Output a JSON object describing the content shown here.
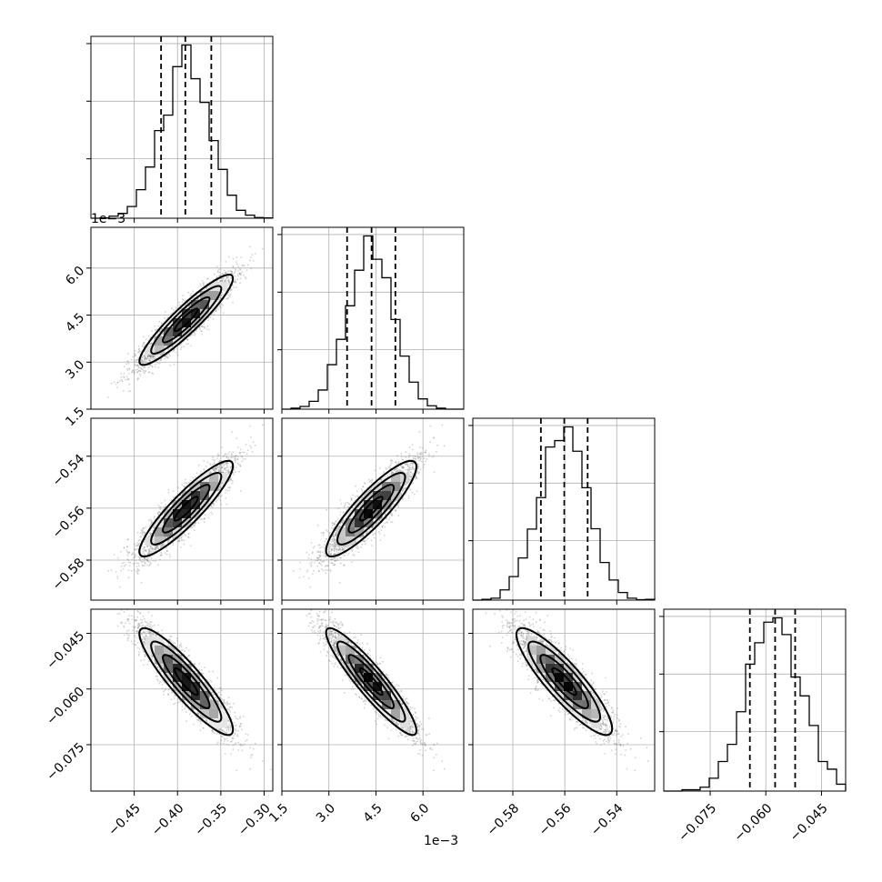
{
  "chart_data": {
    "type": "corner",
    "grid": true,
    "parameters": [
      {
        "mean": -0.39,
        "sd": 0.027,
        "range": [
          -0.5,
          -0.29
        ],
        "quantiles": [
          -0.419,
          -0.391,
          -0.361
        ],
        "ticks": [
          -0.45,
          -0.4,
          -0.35,
          -0.3
        ],
        "ticklabels": [
          "−0.45",
          "−0.40",
          "−0.35",
          "−0.30"
        ]
      },
      {
        "mean": 0.00435,
        "sd": 0.00072,
        "range": [
          0.0015,
          0.0073
        ],
        "quantiles": [
          0.00358,
          0.00436,
          0.00512
        ],
        "ticks": [
          0.0015,
          0.003,
          0.0045,
          0.006
        ],
        "ticklabels": [
          "1.5",
          "3.0",
          "4.5",
          "6.0"
        ],
        "offset_label": "1e−3"
      },
      {
        "mean": -0.5602,
        "sd": 0.0092,
        "range": [
          -0.5954,
          -0.5254
        ],
        "quantiles": [
          -0.5692,
          -0.5602,
          -0.5512
        ],
        "ticks": [
          -0.58,
          -0.56,
          -0.54
        ],
        "ticklabels": [
          "−0.58",
          "−0.56",
          "−0.54"
        ]
      },
      {
        "mean": -0.058,
        "sd": 0.0072,
        "range": [
          -0.0875,
          -0.0385
        ],
        "quantiles": [
          -0.0643,
          -0.0575,
          -0.0521
        ],
        "ticks": [
          -0.075,
          -0.06,
          -0.045
        ],
        "ticklabels": [
          "−0.075",
          "−0.060",
          "−0.045"
        ]
      }
    ],
    "correlations": [
      [
        1.0,
        0.92,
        0.9,
        -0.9
      ],
      [
        0.92,
        1.0,
        0.88,
        -0.92
      ],
      [
        0.9,
        0.88,
        1.0,
        -0.88
      ],
      [
        -0.9,
        -0.92,
        -0.88,
        1.0
      ]
    ],
    "histogram_bins": 20,
    "sample_count": 3000,
    "contour_levels": [
      0.5,
      1.0,
      1.5,
      2.0
    ],
    "colors": {
      "points": "#808080",
      "contour": "#000000",
      "grid": "#b0b0b0",
      "density_dark": "#000000"
    }
  }
}
